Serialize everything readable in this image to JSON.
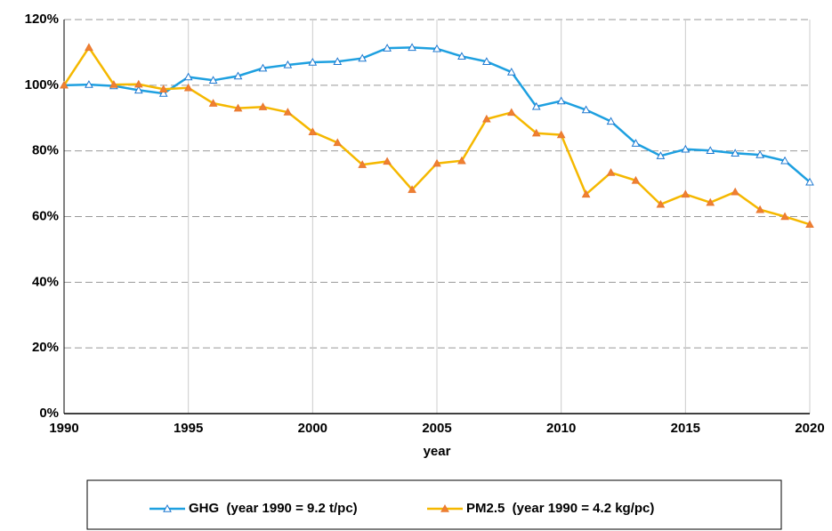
{
  "chart_data": {
    "type": "line",
    "x_label": "year",
    "x": [
      1990,
      1991,
      1992,
      1993,
      1994,
      1995,
      1996,
      1997,
      1998,
      1999,
      2000,
      2001,
      2002,
      2003,
      2004,
      2005,
      2006,
      2007,
      2008,
      2009,
      2010,
      2011,
      2012,
      2013,
      2014,
      2015,
      2016,
      2017,
      2018,
      2019,
      2020
    ],
    "series": [
      {
        "name": "GHG  (year 1990 = 9.2 t/pc)",
        "color": "#1ea0e0",
        "marker_color": "#1e78d0",
        "marker_fill": "#ffffff",
        "values": [
          100,
          100.2,
          99.8,
          98.5,
          97.5,
          102.5,
          101.5,
          102.8,
          105.2,
          106.2,
          107,
          107.2,
          108.2,
          111.3,
          111.5,
          111.1,
          108.8,
          107.2,
          104,
          93.5,
          95.2,
          92.5,
          89,
          82.3,
          78.5,
          80.5,
          80.1,
          79.3,
          78.8,
          77,
          70.5
        ]
      },
      {
        "name": "PM2.5  (year 1990 = 4.2 kg/pc)",
        "color": "#f5b800",
        "marker_color": "#e87830",
        "marker_fill": "#f08030",
        "values": [
          100,
          111.5,
          100.2,
          100.3,
          98.8,
          99.2,
          94.5,
          93,
          93.4,
          91.8,
          85.8,
          82.5,
          75.8,
          76.8,
          68.2,
          76.2,
          77,
          89.7,
          91.7,
          85.4,
          84.9,
          66.8,
          73.4,
          71,
          63.7,
          66.8,
          64.3,
          67.5,
          62.1,
          60,
          57.6
        ]
      }
    ],
    "xlim": [
      1990,
      2020
    ],
    "xticks": [
      1990,
      1995,
      2000,
      2005,
      2010,
      2015,
      2020
    ],
    "ylim": [
      0,
      120
    ],
    "yticks": [
      {
        "value": 0,
        "label": "0%"
      },
      {
        "value": 20,
        "label": "20%"
      },
      {
        "value": 40,
        "label": "40%"
      },
      {
        "value": 60,
        "label": "60%"
      },
      {
        "value": 80,
        "label": "80%"
      },
      {
        "value": 100,
        "label": "100%"
      },
      {
        "value": 120,
        "label": "120%"
      }
    ],
    "grid": true
  }
}
